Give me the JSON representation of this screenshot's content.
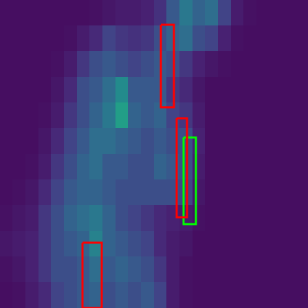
{
  "chart_data": {
    "type": "heatmap",
    "xlim": [
      0,
      448
    ],
    "ylim": [
      0,
      448
    ],
    "tick_labels": false,
    "grid": false,
    "value_range": [
      0,
      1
    ],
    "cells": [
      [
        0.05,
        0.05,
        0.05,
        0.05,
        0.05,
        0.05,
        0.05,
        0.06,
        0.08,
        0.1,
        0.1,
        0.12,
        0.18,
        0.35,
        0.5,
        0.4,
        0.45,
        0.25,
        0.1,
        0.06,
        0.05,
        0.05,
        0.05,
        0.05
      ],
      [
        0.05,
        0.05,
        0.05,
        0.05,
        0.05,
        0.06,
        0.1,
        0.15,
        0.25,
        0.2,
        0.18,
        0.2,
        0.3,
        0.4,
        0.45,
        0.3,
        0.25,
        0.12,
        0.06,
        0.05,
        0.05,
        0.05,
        0.05,
        0.05
      ],
      [
        0.05,
        0.05,
        0.05,
        0.05,
        0.06,
        0.1,
        0.2,
        0.3,
        0.35,
        0.3,
        0.25,
        0.3,
        0.35,
        0.3,
        0.2,
        0.12,
        0.08,
        0.06,
        0.05,
        0.05,
        0.05,
        0.05,
        0.05,
        0.05
      ],
      [
        0.05,
        0.05,
        0.05,
        0.05,
        0.08,
        0.15,
        0.3,
        0.35,
        0.45,
        0.6,
        0.35,
        0.35,
        0.35,
        0.2,
        0.15,
        0.08,
        0.05,
        0.05,
        0.05,
        0.05,
        0.05,
        0.05,
        0.05,
        0.05
      ],
      [
        0.05,
        0.05,
        0.05,
        0.06,
        0.1,
        0.2,
        0.3,
        0.4,
        0.5,
        0.7,
        0.4,
        0.35,
        0.4,
        0.25,
        0.2,
        0.1,
        0.05,
        0.05,
        0.05,
        0.05,
        0.05,
        0.05,
        0.05,
        0.05
      ],
      [
        0.05,
        0.05,
        0.05,
        0.08,
        0.15,
        0.25,
        0.35,
        0.45,
        0.45,
        0.4,
        0.35,
        0.3,
        0.35,
        0.3,
        0.3,
        0.12,
        0.05,
        0.05,
        0.05,
        0.05,
        0.05,
        0.05,
        0.05,
        0.05
      ],
      [
        0.05,
        0.05,
        0.06,
        0.1,
        0.2,
        0.3,
        0.4,
        0.45,
        0.35,
        0.35,
        0.3,
        0.3,
        0.4,
        0.35,
        0.3,
        0.1,
        0.05,
        0.05,
        0.05,
        0.05,
        0.05,
        0.05,
        0.05,
        0.05
      ],
      [
        0.05,
        0.06,
        0.08,
        0.15,
        0.25,
        0.35,
        0.4,
        0.4,
        0.35,
        0.3,
        0.3,
        0.3,
        0.3,
        0.3,
        0.25,
        0.08,
        0.05,
        0.05,
        0.05,
        0.05,
        0.05,
        0.05,
        0.05,
        0.05
      ],
      [
        0.06,
        0.08,
        0.1,
        0.2,
        0.3,
        0.4,
        0.45,
        0.5,
        0.4,
        0.3,
        0.25,
        0.2,
        0.15,
        0.12,
        0.1,
        0.06,
        0.05,
        0.05,
        0.05,
        0.05,
        0.05,
        0.05,
        0.05,
        0.05
      ],
      [
        0.08,
        0.1,
        0.12,
        0.2,
        0.3,
        0.35,
        0.4,
        0.55,
        0.4,
        0.35,
        0.3,
        0.25,
        0.15,
        0.1,
        0.08,
        0.05,
        0.05,
        0.05,
        0.05,
        0.05,
        0.05,
        0.05,
        0.05,
        0.05
      ],
      [
        0.06,
        0.08,
        0.12,
        0.2,
        0.3,
        0.3,
        0.35,
        0.45,
        0.35,
        0.4,
        0.35,
        0.3,
        0.2,
        0.1,
        0.06,
        0.05,
        0.05,
        0.05,
        0.05,
        0.05,
        0.05,
        0.05,
        0.05,
        0.05
      ],
      [
        0.05,
        0.06,
        0.1,
        0.15,
        0.25,
        0.3,
        0.35,
        0.4,
        0.3,
        0.35,
        0.3,
        0.35,
        0.25,
        0.1,
        0.06,
        0.05,
        0.05,
        0.05,
        0.05,
        0.05,
        0.05,
        0.05,
        0.05,
        0.05
      ]
    ],
    "boxes": [
      {
        "color": "#ff0000",
        "x": [
          234,
          253
        ],
        "y": [
          36,
          156
        ]
      },
      {
        "color": "#ff0000",
        "x": [
          257,
          272
        ],
        "y": [
          172,
          316
        ]
      },
      {
        "color": "#ff0000",
        "x": [
          120,
          148
        ],
        "y": [
          353,
          448
        ]
      },
      {
        "color": "#00ff00",
        "x": [
          267,
          285
        ],
        "y": [
          200,
          326
        ]
      }
    ]
  }
}
